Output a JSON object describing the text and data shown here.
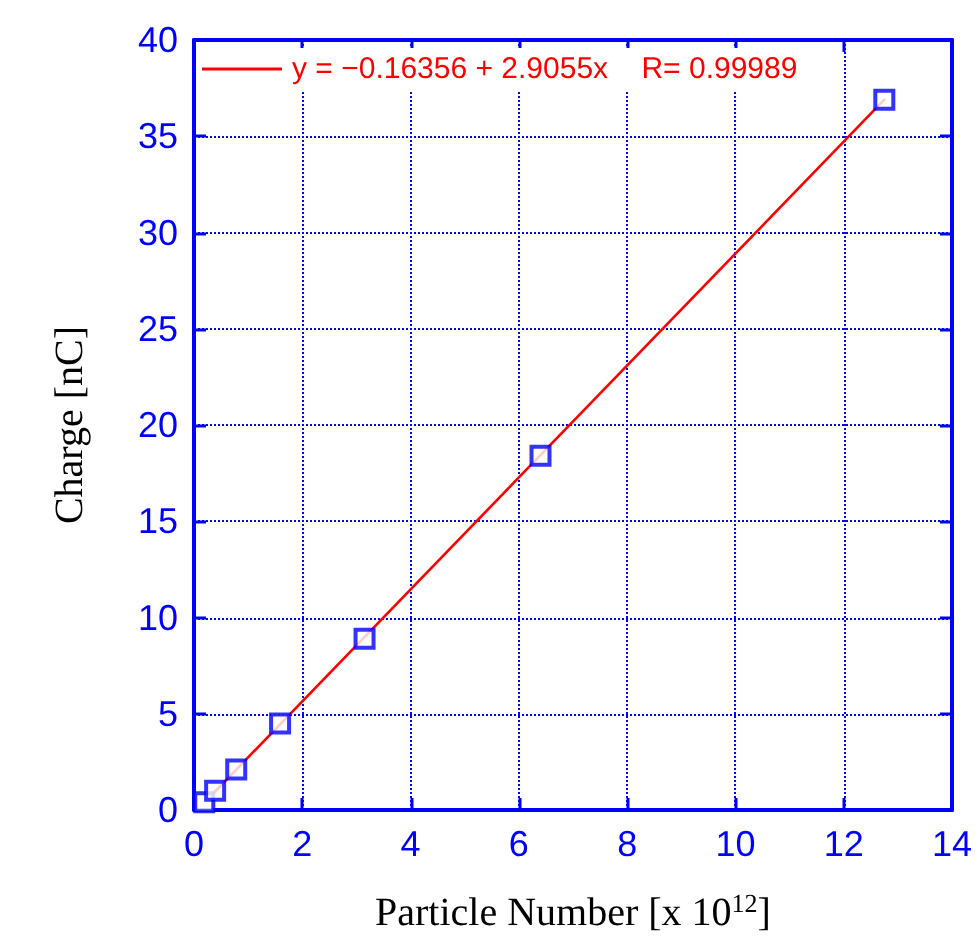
{
  "chart_data": {
    "type": "scatter",
    "xlabel": "Particle Number [x 10$^{12}$]",
    "ylabel": "Charge [nC]",
    "xlim": [
      0,
      14
    ],
    "xticks": [
      0,
      2,
      4,
      6,
      8,
      10,
      12,
      14
    ],
    "ylim": [
      0,
      40
    ],
    "yticks": [
      0,
      5,
      10,
      15,
      20,
      25,
      30,
      35,
      40
    ],
    "grid": true,
    "legend": "top left",
    "marker": "square",
    "series": [
      {
        "color": "#0000ff",
        "x": [
          0.19,
          0.39,
          0.78,
          1.59,
          3.15,
          6.4,
          12.75
        ],
        "values": [
          0.4,
          1.0,
          2.1,
          4.5,
          8.9,
          18.4,
          36.9
        ]
      },
      {
        "type": "line",
        "name": "y = −0.16356 + 2.9055x    R= 0.99989",
        "color": "#ff0000",
        "line_style": "solid",
        "marker": "none",
        "x": [
          0.3,
          12.75
        ],
        "values": [
          0.7,
          36.9
        ]
      }
    ]
  }
}
